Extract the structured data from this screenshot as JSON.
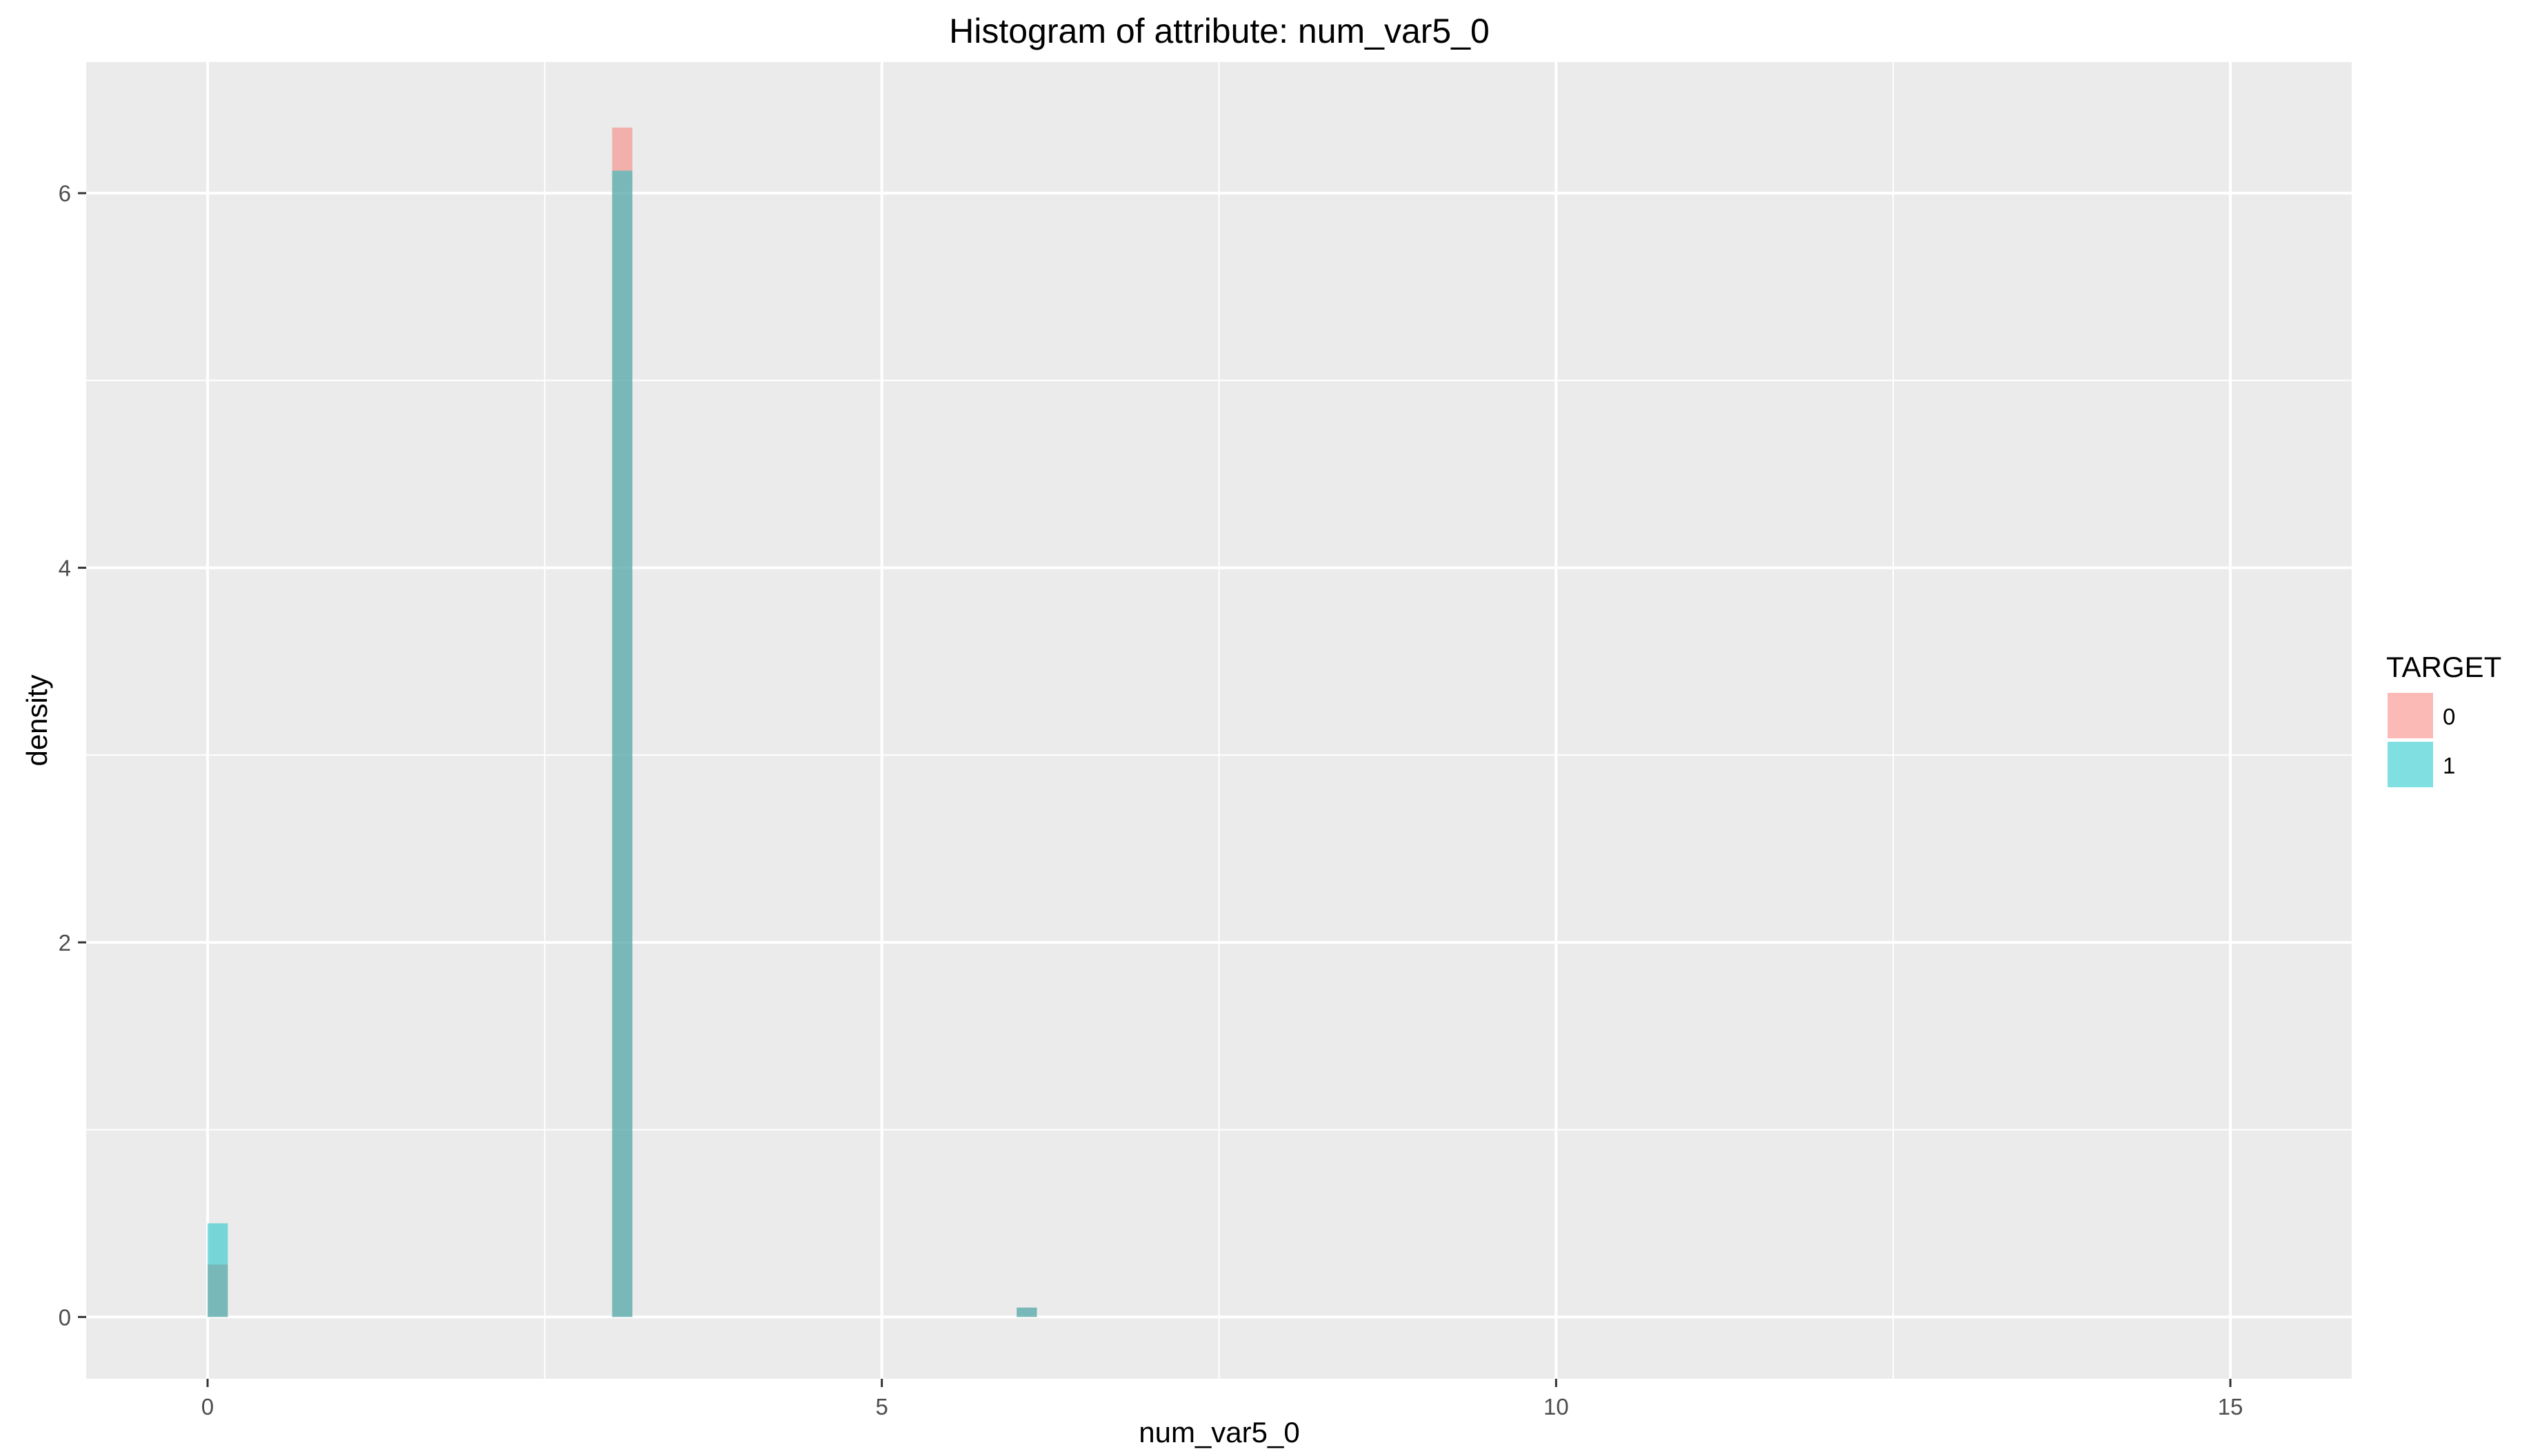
{
  "chart_data": {
    "type": "bar",
    "title": "Histogram of attribute: num_var5_0",
    "xlabel": "num_var5_0",
    "ylabel": "density",
    "xlim": [
      -0.9,
      15.9
    ],
    "ylim": [
      -0.33,
      6.7
    ],
    "x_ticks": [
      0,
      5,
      10,
      15
    ],
    "y_ticks": [
      0,
      2,
      4,
      6
    ],
    "grid": true,
    "bin_width": 0.15,
    "legend": {
      "title": "TARGET",
      "position": "right"
    },
    "series": [
      {
        "name": "0",
        "color": "#F8766D",
        "bins": [
          {
            "x": 0.075,
            "y": 0.28
          },
          {
            "x": 3.075,
            "y": 6.35
          },
          {
            "x": 6.075,
            "y": 0.05
          }
        ]
      },
      {
        "name": "1",
        "color": "#00BFC4",
        "bins": [
          {
            "x": 0.075,
            "y": 0.5
          },
          {
            "x": 3.075,
            "y": 6.12
          },
          {
            "x": 6.075,
            "y": 0.05
          }
        ]
      }
    ],
    "colors": {
      "panel": "#EBEBEB",
      "grid": "#FFFFFF",
      "tick": "#333333"
    }
  }
}
